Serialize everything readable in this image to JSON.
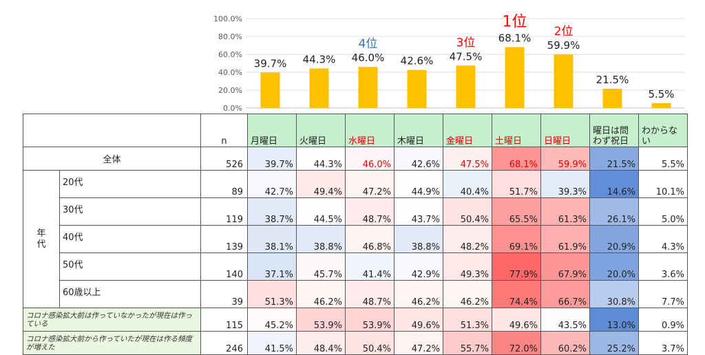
{
  "chart_data": {
    "type": "bar",
    "categories": [
      "月曜日",
      "火曜日",
      "水曜日",
      "木曜日",
      "金曜日",
      "土曜日",
      "日曜日",
      "曜日は問わず祝日",
      "わからない"
    ],
    "values": [
      39.7,
      44.3,
      46.0,
      42.6,
      47.5,
      68.1,
      59.9,
      21.5,
      5.5
    ],
    "value_labels": [
      "39.7%",
      "44.3%",
      "46.0%",
      "42.6%",
      "47.5%",
      "68.1%",
      "59.9%",
      "21.5%",
      "5.5%"
    ],
    "y_ticks": [
      "0.0%",
      "20.0%",
      "40.0%",
      "60.0%",
      "80.0%",
      "100.0%"
    ],
    "ylim": [
      0,
      100
    ],
    "grid": true,
    "bar_color": "#ffc000",
    "annotations": [
      {
        "category_index": 5,
        "text": "1位",
        "color": "#ff0000"
      },
      {
        "category_index": 6,
        "text": "2位",
        "color": "#ff0000"
      },
      {
        "category_index": 4,
        "text": "3位",
        "color": "#ff0000"
      },
      {
        "category_index": 2,
        "text": "4位",
        "color": "#2e75b6"
      }
    ]
  },
  "table": {
    "n_header": "n",
    "day_headers": [
      {
        "label": "月曜日",
        "red": false
      },
      {
        "label": "火曜日",
        "red": false
      },
      {
        "label": "水曜日",
        "red": true
      },
      {
        "label": "木曜日",
        "red": false
      },
      {
        "label": "金曜日",
        "red": true
      },
      {
        "label": "土曜日",
        "red": true
      },
      {
        "label": "日曜日",
        "red": true
      },
      {
        "label": "曜日は問わず祝日",
        "red": false
      },
      {
        "label": "わからない",
        "red": false
      }
    ],
    "total_label": "全体",
    "group_label": "年代",
    "rows": [
      {
        "key": "total",
        "label": "全体",
        "n": "526",
        "values": [
          39.7,
          44.3,
          46.0,
          42.6,
          47.5,
          68.1,
          59.9,
          21.5,
          5.5
        ],
        "labels": [
          "39.7%",
          "44.3%",
          "46.0%",
          "42.6%",
          "47.5%",
          "68.1%",
          "59.9%",
          "21.5%",
          "5.5%"
        ]
      },
      {
        "key": "age",
        "label": "20代",
        "n": "89",
        "values": [
          42.7,
          49.4,
          47.2,
          44.9,
          40.4,
          51.7,
          39.3,
          14.6,
          10.1
        ],
        "labels": [
          "42.7%",
          "49.4%",
          "47.2%",
          "44.9%",
          "40.4%",
          "51.7%",
          "39.3%",
          "14.6%",
          "10.1%"
        ]
      },
      {
        "key": "age",
        "label": "30代",
        "n": "119",
        "values": [
          38.7,
          44.5,
          48.7,
          43.7,
          50.4,
          65.5,
          61.3,
          26.1,
          5.0
        ],
        "labels": [
          "38.7%",
          "44.5%",
          "48.7%",
          "43.7%",
          "50.4%",
          "65.5%",
          "61.3%",
          "26.1%",
          "5.0%"
        ]
      },
      {
        "key": "age",
        "label": "40代",
        "n": "139",
        "values": [
          38.1,
          38.8,
          46.8,
          38.8,
          48.2,
          69.1,
          61.9,
          20.9,
          4.3
        ],
        "labels": [
          "38.1%",
          "38.8%",
          "46.8%",
          "38.8%",
          "48.2%",
          "69.1%",
          "61.9%",
          "20.9%",
          "4.3%"
        ]
      },
      {
        "key": "age",
        "label": "50代",
        "n": "140",
        "values": [
          37.1,
          45.7,
          41.4,
          42.9,
          49.3,
          77.9,
          67.9,
          20.0,
          3.6
        ],
        "labels": [
          "37.1%",
          "45.7%",
          "41.4%",
          "42.9%",
          "49.3%",
          "77.9%",
          "67.9%",
          "20.0%",
          "3.6%"
        ]
      },
      {
        "key": "age",
        "label": "60歳以上",
        "n": "39",
        "values": [
          51.3,
          46.2,
          48.7,
          46.2,
          46.2,
          74.4,
          66.7,
          30.8,
          7.7
        ],
        "labels": [
          "51.3%",
          "46.2%",
          "48.7%",
          "46.2%",
          "46.2%",
          "74.4%",
          "66.7%",
          "30.8%",
          "7.7%"
        ]
      },
      {
        "key": "covid",
        "label": "コロナ感染拡大前は作っていなかったが現在は作っている",
        "n": "115",
        "values": [
          45.2,
          53.9,
          53.9,
          49.6,
          51.3,
          49.6,
          43.5,
          13.0,
          0.9
        ],
        "labels": [
          "45.2%",
          "53.9%",
          "53.9%",
          "49.6%",
          "51.3%",
          "49.6%",
          "43.5%",
          "13.0%",
          "0.9%"
        ]
      },
      {
        "key": "covid",
        "label": "コロナ感染拡大前から作っていたが現在は作る頻度が増えた",
        "n": "246",
        "values": [
          41.5,
          48.4,
          50.4,
          47.2,
          55.7,
          72.0,
          60.2,
          25.2,
          3.7
        ],
        "labels": [
          "41.5%",
          "48.4%",
          "50.4%",
          "47.2%",
          "55.7%",
          "72.0%",
          "60.2%",
          "25.2%",
          "3.7%"
        ]
      }
    ]
  }
}
